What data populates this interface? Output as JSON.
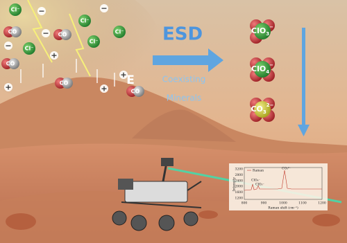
{
  "process": {
    "label": "ESD",
    "sublabel": [
      "Coexisting",
      "Minerals"
    ]
  },
  "field_label": "E",
  "ions": [
    "Cl⁻",
    "Cl⁻",
    "Cl⁻",
    "Cl⁻",
    "Cl⁻",
    "CO",
    "CO",
    "CO",
    "CO",
    "CO",
    "+",
    "+",
    "+",
    "+",
    "−",
    "−",
    "−",
    "−"
  ],
  "products": [
    {
      "base": "ClO",
      "subscript": "3",
      "superscript": "−"
    },
    {
      "base": "ClO",
      "subscript": "4",
      "superscript": "−"
    },
    {
      "base": "CO",
      "subscript": "3",
      "superscript": "2−"
    }
  ],
  "inset": {
    "legend": "Raman",
    "peaks": [
      "ClO₄⁻",
      "ClO₃⁻",
      "CO₃²⁻"
    ],
    "y_label": "Intensity",
    "x_label": "Raman shift (cm⁻¹)",
    "xticks": [
      "800",
      "900",
      "1000",
      "1100",
      "1200"
    ],
    "yticks": [
      "3200",
      "2800",
      "2400",
      "2000",
      "1600",
      "1200"
    ]
  }
}
